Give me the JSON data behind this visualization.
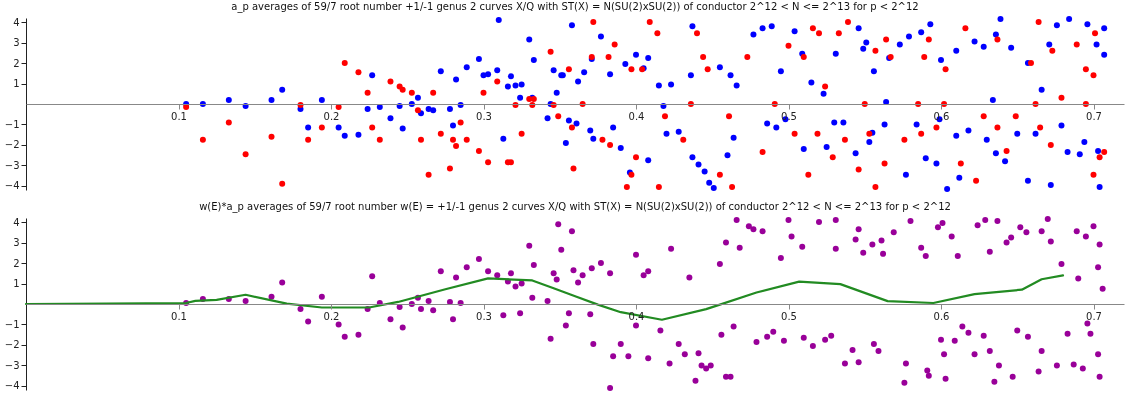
{
  "chart_data": [
    {
      "type": "scatter",
      "title": "a_p averages of 59/7 root number +1/-1 genus 2 curves X/Q with ST(X) = N(SU(2)xSU(2)) of conductor 2^12 < N <= 2^13 for p < 2^12",
      "xlim": [
        0,
        0.72
      ],
      "ylim": [
        -4.2,
        4.2
      ],
      "xticks": [
        0.1,
        0.2,
        0.3,
        0.4,
        0.5,
        0.6,
        0.7
      ],
      "yticks": [
        -4,
        -3,
        -2,
        -1,
        1,
        2,
        3,
        4
      ],
      "grid": false,
      "marker": "circle",
      "series": [
        {
          "color": "#0000ff",
          "x": [
            0.105,
            0.116,
            0.133,
            0.144,
            0.161,
            0.168,
            0.18,
            0.185,
            0.194,
            0.205,
            0.209,
            0.218,
            0.224,
            0.227,
            0.232,
            0.239,
            0.245,
            0.247,
            0.253,
            0.257,
            0.259,
            0.264,
            0.267,
            0.272,
            0.278,
            0.28,
            0.282,
            0.285,
            0.289,
            0.297,
            0.3,
            0.303,
            0.309,
            0.31,
            0.313,
            0.316,
            0.318,
            0.321,
            0.324,
            0.325,
            0.33,
            0.332,
            0.333,
            0.342,
            0.344,
            0.346,
            0.348,
            0.352,
            0.358,
            0.351,
            0.362,
            0.366,
            0.354,
            0.371,
            0.377,
            0.383,
            0.393,
            0.4,
            0.405,
            0.408,
            0.415,
            0.423,
            0.437,
            0.436,
            0.455,
            0.462,
            0.477,
            0.483,
            0.489,
            0.495,
            0.504,
            0.509,
            0.515,
            0.531,
            0.546,
            0.549,
            0.551,
            0.556,
            0.566,
            0.573,
            0.579,
            0.587,
            0.593,
            0.6,
            0.61,
            0.622,
            0.628,
            0.636,
            0.639,
            0.646,
            0.657,
            0.666,
            0.671,
            0.676,
            0.684,
            0.696,
            0.702,
            0.707,
            0.707,
            0.356,
            0.361,
            0.37,
            0.372,
            0.385,
            0.39,
            0.396,
            0.408,
            0.42,
            0.428,
            0.437,
            0.441,
            0.445,
            0.448,
            0.451,
            0.46,
            0.464,
            0.486,
            0.492,
            0.498,
            0.51,
            0.525,
            0.53,
            0.536,
            0.544,
            0.553,
            0.555,
            0.563,
            0.577,
            0.584,
            0.59,
            0.597,
            0.604,
            0.61,
            0.612,
            0.618,
            0.63,
            0.636,
            0.642,
            0.65,
            0.657,
            0.662,
            0.672,
            0.679,
            0.683,
            0.691,
            0.694,
            0.703,
            0.704,
            0.418,
            0.466,
            0.523,
            0.564,
            0.599,
            0.634
          ],
          "values": [
            0.0,
            0.0,
            0.2,
            -0.1,
            0.2,
            0.7,
            -0.25,
            -1.15,
            0.2,
            -1.15,
            -1.55,
            -1.5,
            -0.25,
            1.4,
            -0.15,
            -0.7,
            -0.1,
            -1.2,
            0,
            0.3,
            -0.45,
            -0.25,
            -0.3,
            1.6,
            -0.25,
            -1.05,
            1.2,
            -0.05,
            1.8,
            2.2,
            1.4,
            1.45,
            1.65,
            4.1,
            -1.7,
            0.85,
            1.35,
            0.9,
            0.3,
            0.95,
            3.15,
            0.3,
            2.15,
            -0.7,
            0,
            1.65,
            0.55,
            1.4,
            3.85,
            1.4,
            1.1,
            1.55,
            -1.9,
            2.2,
            3.3,
            1.45,
            1.95,
            2.4,
            1.75,
            2.25,
            0.9,
            0.95,
            3.8,
            1.4,
            1.8,
            1.4,
            3.4,
            3.7,
            3.8,
            1.6,
            3.55,
            2.45,
            1.05,
            2.45,
            3.7,
            2.7,
            3.0,
            1.6,
            2.25,
            2.9,
            3.3,
            3.5,
            3.9,
            2.15,
            2.6,
            3.05,
            2.8,
            3.4,
            4.15,
            2.75,
            2.0,
            0.7,
            2.9,
            3.85,
            4.15,
            3.9,
            2.9,
            3.7,
            2.4,
            -0.8,
            -0.95,
            -1.3,
            -1.7,
            -1.15,
            -2.15,
            -3.35,
            -2.75,
            -1.45,
            -1.35,
            -2.6,
            -2.95,
            -3.3,
            -3.85,
            -4.1,
            -2.5,
            -1.65,
            -0.95,
            -1.15,
            -0.75,
            -2.2,
            -2.1,
            -0.9,
            -0.9,
            -2.4,
            -1.85,
            -1.4,
            -1.0,
            -3.45,
            -1.0,
            -2.65,
            -2.9,
            -4.15,
            -1.55,
            -3.6,
            -1.3,
            -1.75,
            -2.4,
            -2.8,
            -1.45,
            -3.75,
            -1.45,
            -3.95,
            -1.05,
            -2.35,
            -2.45,
            -1.85,
            -2.3,
            -4.05,
            -0.1,
            0.9,
            0.5,
            0.1,
            -0.75,
            0.2
          ]
        },
        {
          "color": "#ff0000",
          "x": [
            0.105,
            0.116,
            0.133,
            0.144,
            0.161,
            0.168,
            0.18,
            0.185,
            0.194,
            0.205,
            0.209,
            0.218,
            0.224,
            0.227,
            0.232,
            0.239,
            0.245,
            0.247,
            0.253,
            0.257,
            0.259,
            0.264,
            0.267,
            0.272,
            0.278,
            0.28,
            0.282,
            0.285,
            0.289,
            0.297,
            0.3,
            0.303,
            0.309,
            0.316,
            0.318,
            0.321,
            0.325,
            0.33,
            0.332,
            0.333,
            0.344,
            0.346,
            0.349,
            0.372,
            0.409,
            0.414,
            0.386,
            0.371,
            0.382,
            0.356,
            0.397,
            0.404,
            0.44,
            0.444,
            0.447,
            0.473,
            0.5,
            0.51,
            0.516,
            0.52,
            0.533,
            0.539,
            0.524,
            0.557,
            0.564,
            0.567,
            0.592,
            0.589,
            0.616,
            0.603,
            0.637,
            0.659,
            0.664,
            0.673,
            0.689,
            0.701,
            0.695,
            0.7,
            0.679,
            0.358,
            0.359,
            0.378,
            0.383,
            0.4,
            0.397,
            0.394,
            0.415,
            0.419,
            0.431,
            0.455,
            0.463,
            0.461,
            0.483,
            0.504,
            0.513,
            0.519,
            0.529,
            0.537,
            0.546,
            0.553,
            0.563,
            0.557,
            0.576,
            0.587,
            0.597,
            0.613,
            0.623,
            0.628,
            0.637,
            0.643,
            0.649,
            0.665,
            0.672,
            0.7,
            0.704,
            0.707,
            0.365,
            0.436,
            0.491,
            0.55,
            0.585,
            0.602,
            0.662,
            0.695
          ],
          "values": [
            -0.15,
            -1.75,
            -0.9,
            -2.45,
            -1.6,
            -3.9,
            -0.05,
            -1.75,
            -1.15,
            -0.15,
            2.0,
            1.55,
            0.55,
            -1.15,
            -1.75,
            1.1,
            0.85,
            0.7,
            0.55,
            -0.3,
            -1.75,
            -3.45,
            0.55,
            -1.45,
            -3.15,
            -1.75,
            -2.05,
            -0.9,
            -1.75,
            -2.3,
            0.55,
            -2.85,
            1.1,
            -2.85,
            -2.85,
            -0.05,
            -1.45,
            0.25,
            -0.05,
            0.25,
            2.55,
            -0.05,
            -0.6,
            4.0,
            4.0,
            3.45,
            2.9,
            2.3,
            2.3,
            1.7,
            1.7,
            1.7,
            3.45,
            2.3,
            1.7,
            2.3,
            2.85,
            2.3,
            3.7,
            3.45,
            3.45,
            4.0,
            0.85,
            2.6,
            3.15,
            2.3,
            3.15,
            2.3,
            3.7,
            1.7,
            3.15,
            2.0,
            4.0,
            2.6,
            2.9,
            3.45,
            1.7,
            1.4,
            0.3,
            -1.15,
            -3.15,
            -1.75,
            -2.0,
            -2.6,
            -3.45,
            -4.05,
            -4.05,
            -0.6,
            -1.75,
            -3.45,
            -4.05,
            -0.6,
            -2.35,
            -1.45,
            -3.45,
            -1.45,
            -2.6,
            -1.75,
            -3.2,
            -1.45,
            -2.9,
            -4.05,
            -1.75,
            -1.45,
            -1.15,
            -2.9,
            -3.75,
            -0.6,
            -1.15,
            -2.3,
            -0.6,
            -1.15,
            -2.0,
            -3.45,
            -2.6,
            -2.35,
            0,
            0,
            0,
            0,
            0,
            0,
            0,
            0
          ]
        }
      ]
    },
    {
      "type": "scatter",
      "title": "w(E)*a_p averages of 59/7 root number w(E) = +1/-1 genus 2 curves X/Q with ST(X) = N(SU(2)xSU(2)) of conductor 2^12 < N <= 2^13 for p < 2^12",
      "xlim": [
        0,
        0.72
      ],
      "ylim": [
        -4.2,
        4.2
      ],
      "xticks": [
        0.1,
        0.2,
        0.3,
        0.4,
        0.5,
        0.6,
        0.7
      ],
      "yticks": [
        -4,
        -3,
        -2,
        -1,
        1,
        2,
        3,
        4
      ],
      "grid": false,
      "series": [
        {
          "color": "#990099",
          "marker": "circle",
          "x": [
            0.105,
            0.116,
            0.133,
            0.144,
            0.161,
            0.168,
            0.18,
            0.185,
            0.194,
            0.205,
            0.209,
            0.218,
            0.224,
            0.227,
            0.232,
            0.239,
            0.245,
            0.247,
            0.253,
            0.257,
            0.259,
            0.264,
            0.267,
            0.272,
            0.278,
            0.28,
            0.282,
            0.285,
            0.289,
            0.297,
            0.303,
            0.309,
            0.313,
            0.316,
            0.318,
            0.321,
            0.324,
            0.325,
            0.33,
            0.332,
            0.333,
            0.342,
            0.344,
            0.346,
            0.348,
            0.349,
            0.358,
            0.351,
            0.359,
            0.362,
            0.365,
            0.371,
            0.377,
            0.383,
            0.4,
            0.405,
            0.408,
            0.423,
            0.435,
            0.455,
            0.459,
            0.466,
            0.468,
            0.474,
            0.477,
            0.483,
            0.495,
            0.5,
            0.502,
            0.509,
            0.52,
            0.531,
            0.531,
            0.544,
            0.546,
            0.549,
            0.555,
            0.561,
            0.569,
            0.562,
            0.58,
            0.587,
            0.59,
            0.598,
            0.601,
            0.607,
            0.611,
            0.624,
            0.629,
            0.632,
            0.637,
            0.643,
            0.646,
            0.652,
            0.656,
            0.666,
            0.67,
            0.672,
            0.679,
            0.689,
            0.695,
            0.7,
            0.704,
            0.703,
            0.706,
            0.69,
            0.356,
            0.354,
            0.37,
            0.372,
            0.385,
            0.39,
            0.383,
            0.395,
            0.4,
            0.408,
            0.416,
            0.422,
            0.428,
            0.432,
            0.439,
            0.441,
            0.443,
            0.446,
            0.449,
            0.459,
            0.462,
            0.456,
            0.464,
            0.479,
            0.486,
            0.49,
            0.497,
            0.51,
            0.516,
            0.524,
            0.528,
            0.537,
            0.542,
            0.546,
            0.556,
            0.559,
            0.576,
            0.577,
            0.591,
            0.592,
            0.6,
            0.602,
            0.603,
            0.609,
            0.614,
            0.618,
            0.622,
            0.628,
            0.632,
            0.635,
            0.638,
            0.647,
            0.65,
            0.657,
            0.664,
            0.666,
            0.676,
            0.683,
            0.687,
            0.693,
            0.696,
            0.698,
            0.703,
            0.704
          ],
          "values": [
            0.05,
            0.25,
            0.25,
            0.15,
            0.35,
            1.05,
            -0.25,
            -0.85,
            0.35,
            -1.0,
            -1.6,
            -1.5,
            -0.25,
            1.35,
            0.05,
            -0.75,
            -0.15,
            -1.15,
            0,
            0.3,
            -0.25,
            0.15,
            -0.3,
            1.6,
            0.1,
            -0.75,
            1.3,
            0.05,
            1.8,
            2.2,
            1.6,
            1.4,
            -0.55,
            1.1,
            1.5,
            0.85,
            -0.45,
            1.0,
            2.85,
            0.3,
            1.9,
            0.15,
            -1.7,
            1.5,
            1.2,
            3.9,
            3.55,
            2.65,
            1.65,
            1.05,
            1.4,
            1.75,
            2.0,
            1.5,
            2.4,
            1.4,
            1.6,
            2.7,
            1.3,
            1.95,
            3.0,
            4.1,
            2.75,
            3.8,
            3.65,
            3.55,
            2.25,
            4.1,
            3.3,
            2.8,
            4.0,
            4.1,
            2.7,
            3.15,
            3.65,
            2.5,
            2.9,
            3.1,
            3.5,
            2.45,
            4.05,
            2.75,
            2.35,
            3.75,
            3.95,
            3.3,
            2.35,
            3.85,
            4.1,
            2.55,
            4.05,
            3.0,
            3.25,
            3.75,
            3.5,
            3.55,
            4.15,
            3.05,
            1.95,
            3.55,
            3.3,
            3.8,
            2.9,
            1.8,
            0.75,
            1.25,
            -0.45,
            -1.05,
            -0.5,
            -1.95,
            -2.55,
            -1.95,
            -4.1,
            -2.55,
            -1.05,
            -2.65,
            -1.3,
            -2.9,
            -1.95,
            -2.45,
            -3.75,
            -2.4,
            -3.0,
            -3.15,
            -3.0,
            -3.55,
            -3.55,
            -1.5,
            -1.1,
            -1.85,
            -1.6,
            -1.35,
            -1.8,
            -1.65,
            -2.05,
            -1.75,
            -1.55,
            -2.9,
            -2.25,
            -2.85,
            -1.95,
            -2.3,
            -3.85,
            -2.9,
            -3.25,
            -3.5,
            -1.75,
            -2.45,
            -3.65,
            -1.8,
            -1.1,
            -1.4,
            -2.45,
            -1.55,
            -2.3,
            -3.8,
            -3.0,
            -3.55,
            -1.3,
            -1.6,
            -3.3,
            -2.3,
            -3.0,
            -1.45,
            -2.95,
            -3.15,
            -0.95,
            -1.45,
            -2.45,
            -3.55
          ]
        },
        {
          "type": "line",
          "color": "#228b22",
          "x": [
            0,
            0.105,
            0.111,
            0.125,
            0.144,
            0.171,
            0.194,
            0.225,
            0.244,
            0.275,
            0.303,
            0.332,
            0.346,
            0.361,
            0.375,
            0.39,
            0.417,
            0.446,
            0.455,
            0.479,
            0.507,
            0.534,
            0.565,
            0.595,
            0.622,
            0.653,
            0.666,
            0.68
          ],
          "values": [
            0,
            0.05,
            0.15,
            0.2,
            0.45,
            0.02,
            -0.17,
            -0.17,
            0.1,
            0.72,
            1.25,
            1.15,
            0.77,
            0.35,
            -0.03,
            -0.4,
            -0.77,
            -0.25,
            -0.03,
            0.56,
            1.09,
            0.97,
            0.14,
            0.05,
            0.48,
            0.7,
            1.21,
            1.4
          ]
        }
      ]
    }
  ]
}
